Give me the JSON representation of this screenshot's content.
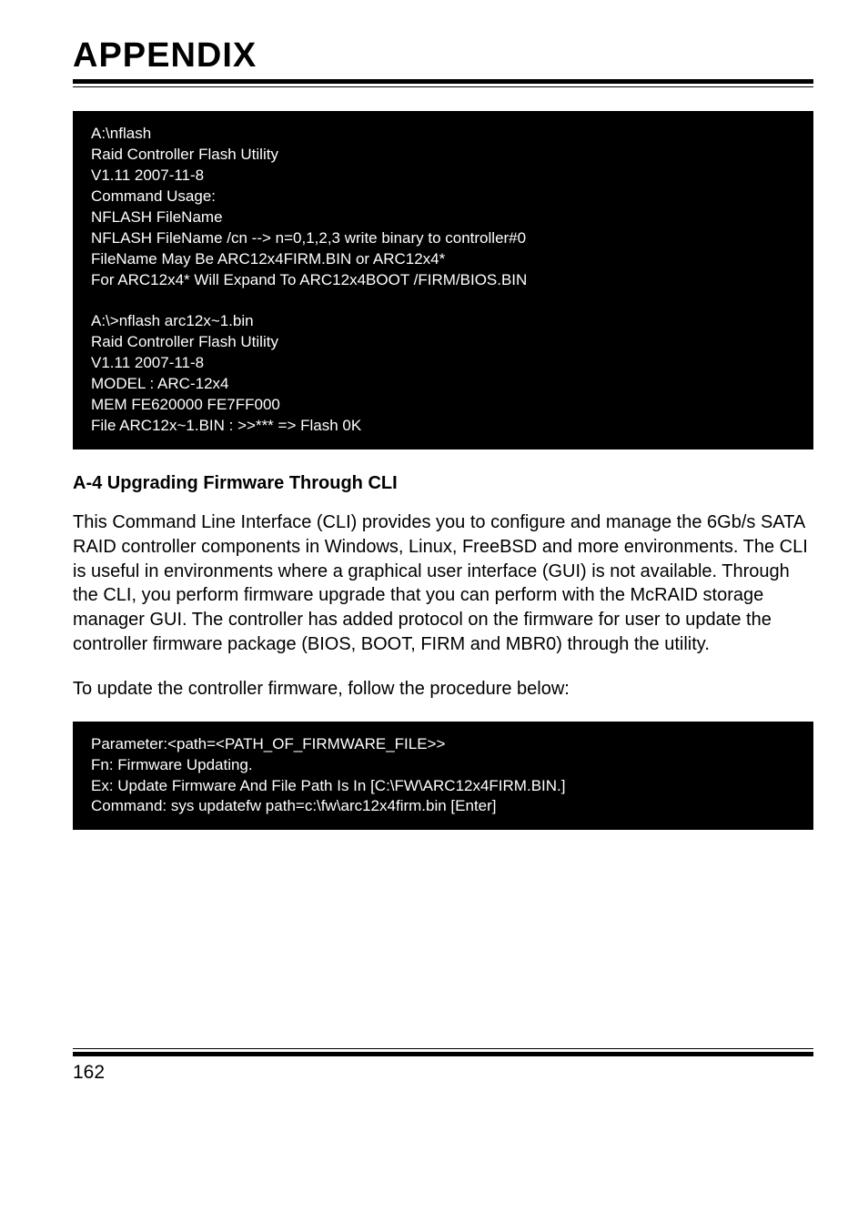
{
  "header": {
    "title": "APPENDIX"
  },
  "codeblock1": {
    "lines": [
      "A:\\nflash",
      "Raid Controller Flash Utility",
      "V1.11 2007-11-8",
      "Command Usage:",
      "NFLASH FileName",
      "NFLASH FileName /cn --> n=0,1,2,3 write binary to controller#0",
      "FileName May Be ARC12x4FIRM.BIN or ARC12x4*",
      "For ARC12x4* Will Expand To ARC12x4BOOT /FIRM/BIOS.BIN",
      "",
      "A:\\>nflash arc12x~1.bin",
      "Raid Controller Flash Utility",
      "V1.11 2007-11-8",
      "MODEL : ARC-12x4",
      "MEM FE620000 FE7FF000",
      "File ARC12x~1.BIN : >>*** => Flash 0K"
    ]
  },
  "section": {
    "heading": "A-4 Upgrading Firmware Through CLI",
    "para1": "This Command Line Interface (CLI) provides you to configure and manage the 6Gb/s SATA RAID controller components in Windows, Linux, FreeBSD and more environments. The CLI is useful in environments where a graphical user interface (GUI) is not available. Through the CLI, you perform firmware upgrade that you can perform with the McRAID storage manager GUI. The controller has added protocol on the firmware for user to update the controller firmware package (BIOS, BOOT, FIRM and MBR0) through the utility.",
    "para2": "To update the controller firmware, follow the procedure below:"
  },
  "codeblock2": {
    "lines": [
      "Parameter:<path=<PATH_OF_FIRMWARE_FILE>>",
      "Fn: Firmware Updating.",
      "Ex: Update Firmware And File Path Is In [C:\\FW\\ARC12x4FIRM.BIN.]",
      "Command: sys updatefw path=c:\\fw\\arc12x4firm.bin [Enter]"
    ]
  },
  "footer": {
    "page_number": "162"
  },
  "colors": {
    "code_bg": "#000000",
    "code_fg": "#ffffff",
    "text": "#000000",
    "page_bg": "#ffffff"
  }
}
